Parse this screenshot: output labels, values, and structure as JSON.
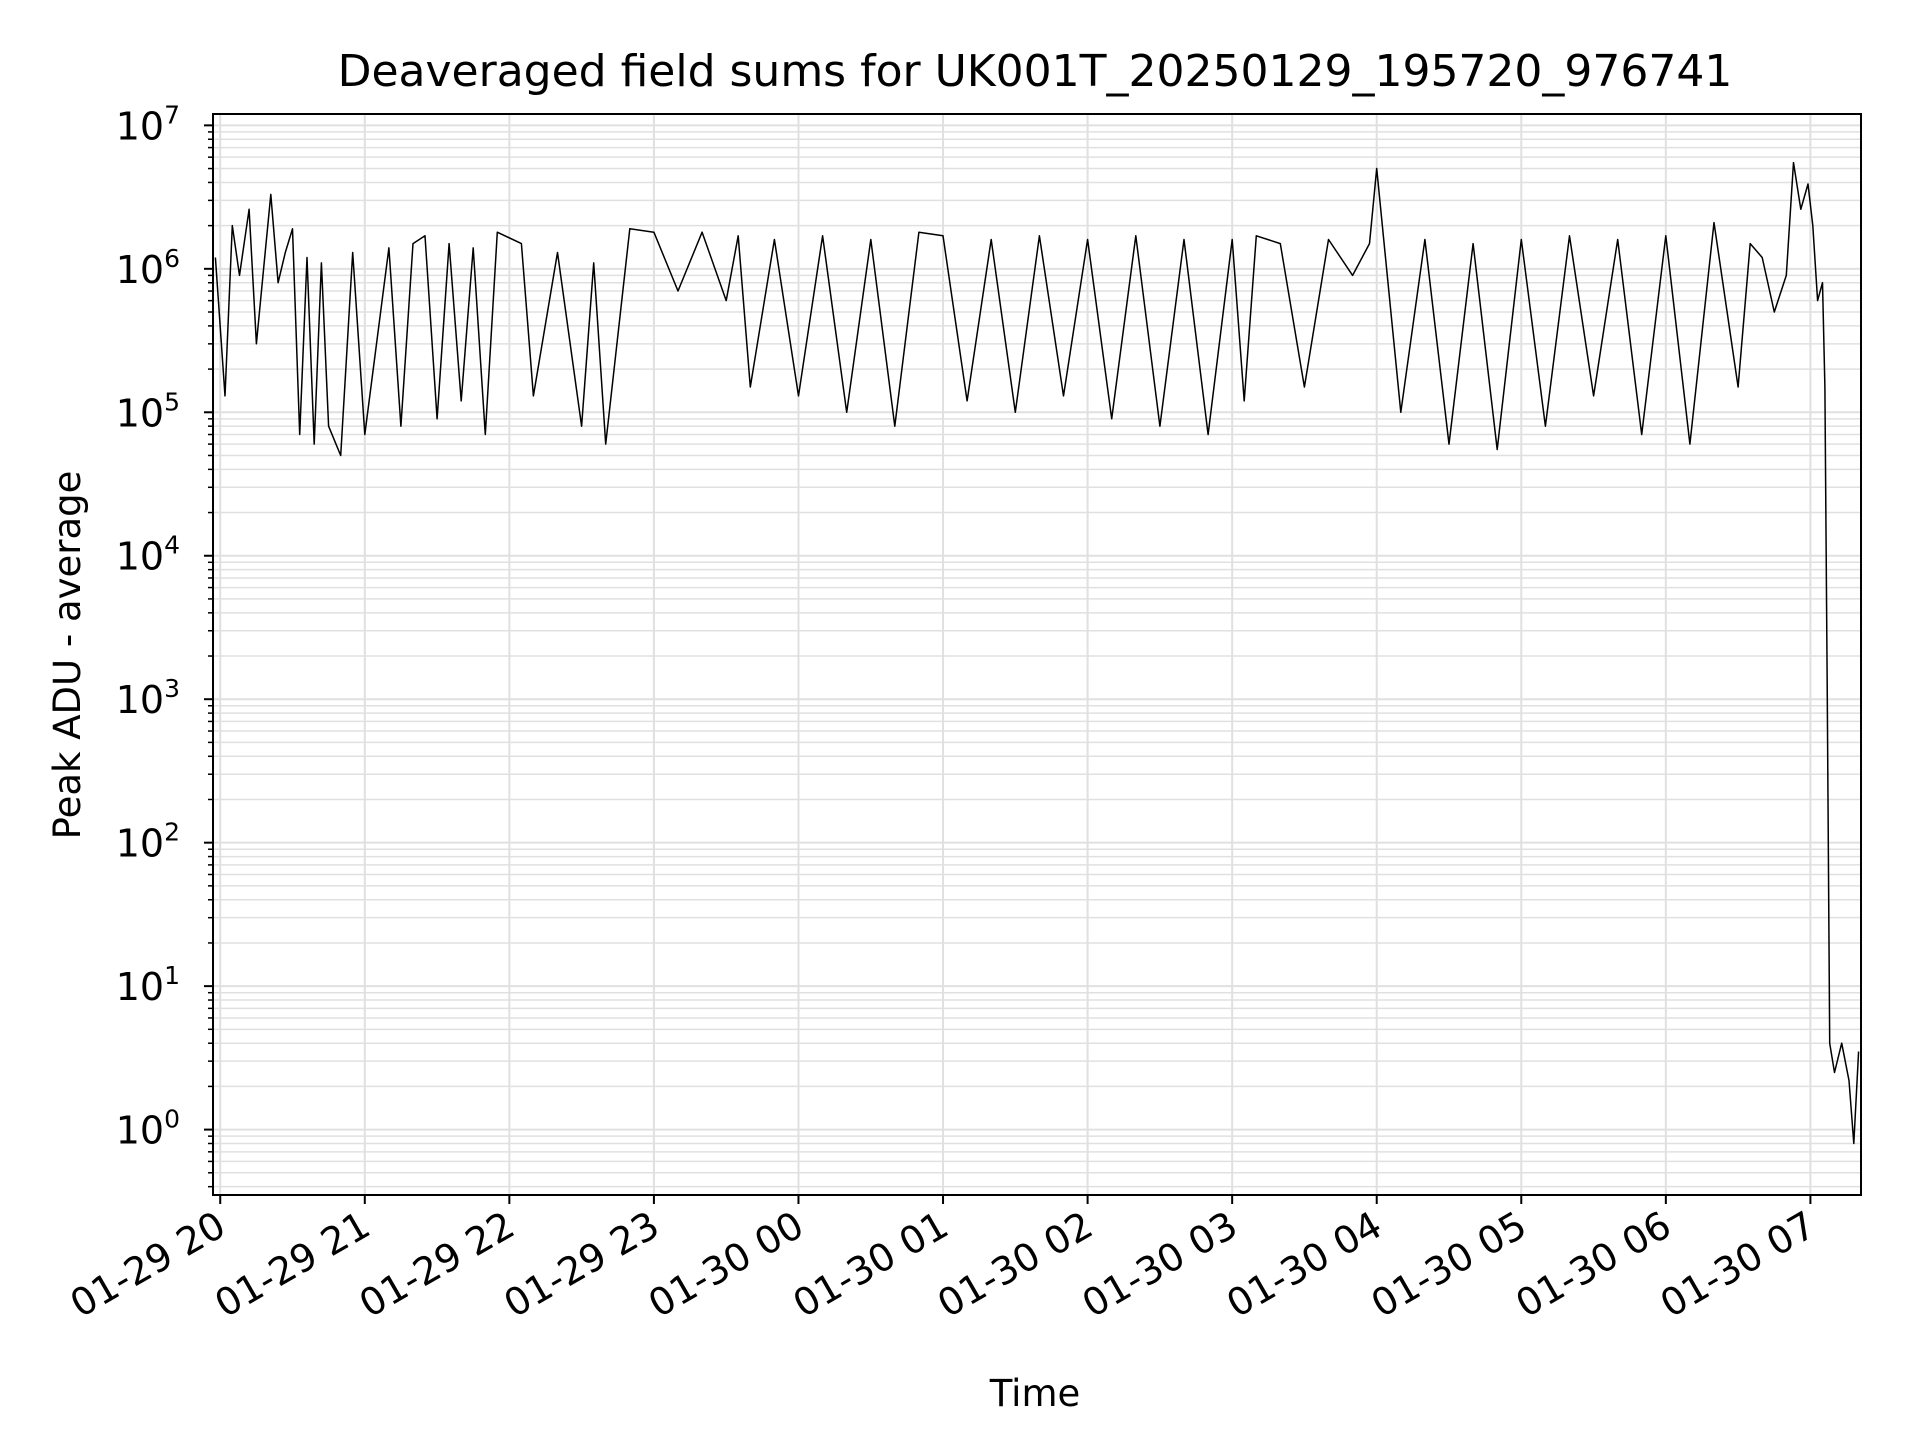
{
  "chart_data": {
    "type": "line",
    "title": "Deaveraged field sums for UK001T_20250129_195720_976741",
    "xlabel": "Time",
    "ylabel": "Peak ADU - average",
    "yscale": "log",
    "ylim": [
      0.35,
      12000000
    ],
    "xlim": [
      "2025-01-29 19:57",
      "2025-01-30 07:21"
    ],
    "grid": true,
    "line_color": "#000000",
    "grid_color": "#e0e0e0",
    "x_ticks": [
      "01-29 20",
      "01-29 21",
      "01-29 22",
      "01-29 23",
      "01-30 00",
      "01-30 01",
      "01-30 02",
      "01-30 03",
      "01-30 04",
      "01-30 05",
      "01-30 06",
      "01-30 07"
    ],
    "y_ticks": [
      {
        "base": "10",
        "exp": "0"
      },
      {
        "base": "10",
        "exp": "1"
      },
      {
        "base": "10",
        "exp": "2"
      },
      {
        "base": "10",
        "exp": "3"
      },
      {
        "base": "10",
        "exp": "4"
      },
      {
        "base": "10",
        "exp": "5"
      },
      {
        "base": "10",
        "exp": "6"
      },
      {
        "base": "10",
        "exp": "7"
      }
    ],
    "series": [
      {
        "x": [
          "2025-01-29 19:58",
          "2025-01-29 20:02",
          "2025-01-29 20:05",
          "2025-01-29 20:08",
          "2025-01-29 20:12",
          "2025-01-29 20:15",
          "2025-01-29 20:18",
          "2025-01-29 20:21",
          "2025-01-29 20:24",
          "2025-01-29 20:27",
          "2025-01-29 20:30",
          "2025-01-29 20:33",
          "2025-01-29 20:36",
          "2025-01-29 20:39",
          "2025-01-29 20:42",
          "2025-01-29 20:45",
          "2025-01-29 20:50",
          "2025-01-29 20:55",
          "2025-01-29 21:00",
          "2025-01-29 21:10",
          "2025-01-29 21:15",
          "2025-01-29 21:20",
          "2025-01-29 21:25",
          "2025-01-29 21:30",
          "2025-01-29 21:35",
          "2025-01-29 21:40",
          "2025-01-29 21:45",
          "2025-01-29 21:50",
          "2025-01-29 21:55",
          "2025-01-29 22:05",
          "2025-01-29 22:10",
          "2025-01-29 22:20",
          "2025-01-29 22:30",
          "2025-01-29 22:35",
          "2025-01-29 22:40",
          "2025-01-29 22:50",
          "2025-01-29 23:00",
          "2025-01-29 23:10",
          "2025-01-29 23:20",
          "2025-01-29 23:30",
          "2025-01-29 23:35",
          "2025-01-29 23:40",
          "2025-01-29 23:50",
          "2025-01-30 00:00",
          "2025-01-30 00:10",
          "2025-01-30 00:20",
          "2025-01-30 00:30",
          "2025-01-30 00:40",
          "2025-01-30 00:50",
          "2025-01-30 01:00",
          "2025-01-30 01:10",
          "2025-01-30 01:20",
          "2025-01-30 01:30",
          "2025-01-30 01:40",
          "2025-01-30 01:50",
          "2025-01-30 02:00",
          "2025-01-30 02:10",
          "2025-01-30 02:20",
          "2025-01-30 02:30",
          "2025-01-30 02:40",
          "2025-01-30 02:50",
          "2025-01-30 03:00",
          "2025-01-30 03:05",
          "2025-01-30 03:10",
          "2025-01-30 03:20",
          "2025-01-30 03:30",
          "2025-01-30 03:40",
          "2025-01-30 03:50",
          "2025-01-30 03:57",
          "2025-01-30 04:00",
          "2025-01-30 04:10",
          "2025-01-30 04:20",
          "2025-01-30 04:30",
          "2025-01-30 04:40",
          "2025-01-30 04:50",
          "2025-01-30 05:00",
          "2025-01-30 05:10",
          "2025-01-30 05:20",
          "2025-01-30 05:30",
          "2025-01-30 05:40",
          "2025-01-30 05:50",
          "2025-01-30 06:00",
          "2025-01-30 06:10",
          "2025-01-30 06:20",
          "2025-01-30 06:30",
          "2025-01-30 06:35",
          "2025-01-30 06:40",
          "2025-01-30 06:45",
          "2025-01-30 06:50",
          "2025-01-30 06:53",
          "2025-01-30 06:56",
          "2025-01-30 06:59",
          "2025-01-30 07:01",
          "2025-01-30 07:03",
          "2025-01-30 07:05",
          "2025-01-30 07:06",
          "2025-01-30 07:07",
          "2025-01-30 07:08",
          "2025-01-30 07:10",
          "2025-01-30 07:13",
          "2025-01-30 07:16",
          "2025-01-30 07:18",
          "2025-01-30 07:20"
        ],
        "y": [
          1200000,
          130000,
          2000000,
          900000,
          2600000,
          300000,
          1000000,
          3300000,
          800000,
          1300000,
          1900000,
          70000,
          1200000,
          60000,
          1100000,
          80000,
          50000,
          1300000,
          70000,
          1400000,
          80000,
          1500000,
          1700000,
          90000,
          1500000,
          120000,
          1400000,
          70000,
          1800000,
          1500000,
          130000,
          1300000,
          80000,
          1100000,
          60000,
          1900000,
          1800000,
          700000,
          1800000,
          600000,
          1700000,
          150000,
          1600000,
          130000,
          1700000,
          100000,
          1600000,
          80000,
          1800000,
          1700000,
          120000,
          1600000,
          100000,
          1700000,
          130000,
          1600000,
          90000,
          1700000,
          80000,
          1600000,
          70000,
          1600000,
          120000,
          1700000,
          1500000,
          150000,
          1600000,
          900000,
          1500000,
          5000000,
          100000,
          1600000,
          60000,
          1500000,
          55000,
          1600000,
          80000,
          1700000,
          130000,
          1600000,
          70000,
          1700000,
          60000,
          2100000,
          150000,
          1500000,
          1200000,
          500000,
          900000,
          5500000,
          2600000,
          3900000,
          2000000,
          600000,
          800000,
          150000,
          1000,
          4,
          2.5,
          4,
          2.2,
          0.8,
          3.5
        ]
      }
    ]
  }
}
